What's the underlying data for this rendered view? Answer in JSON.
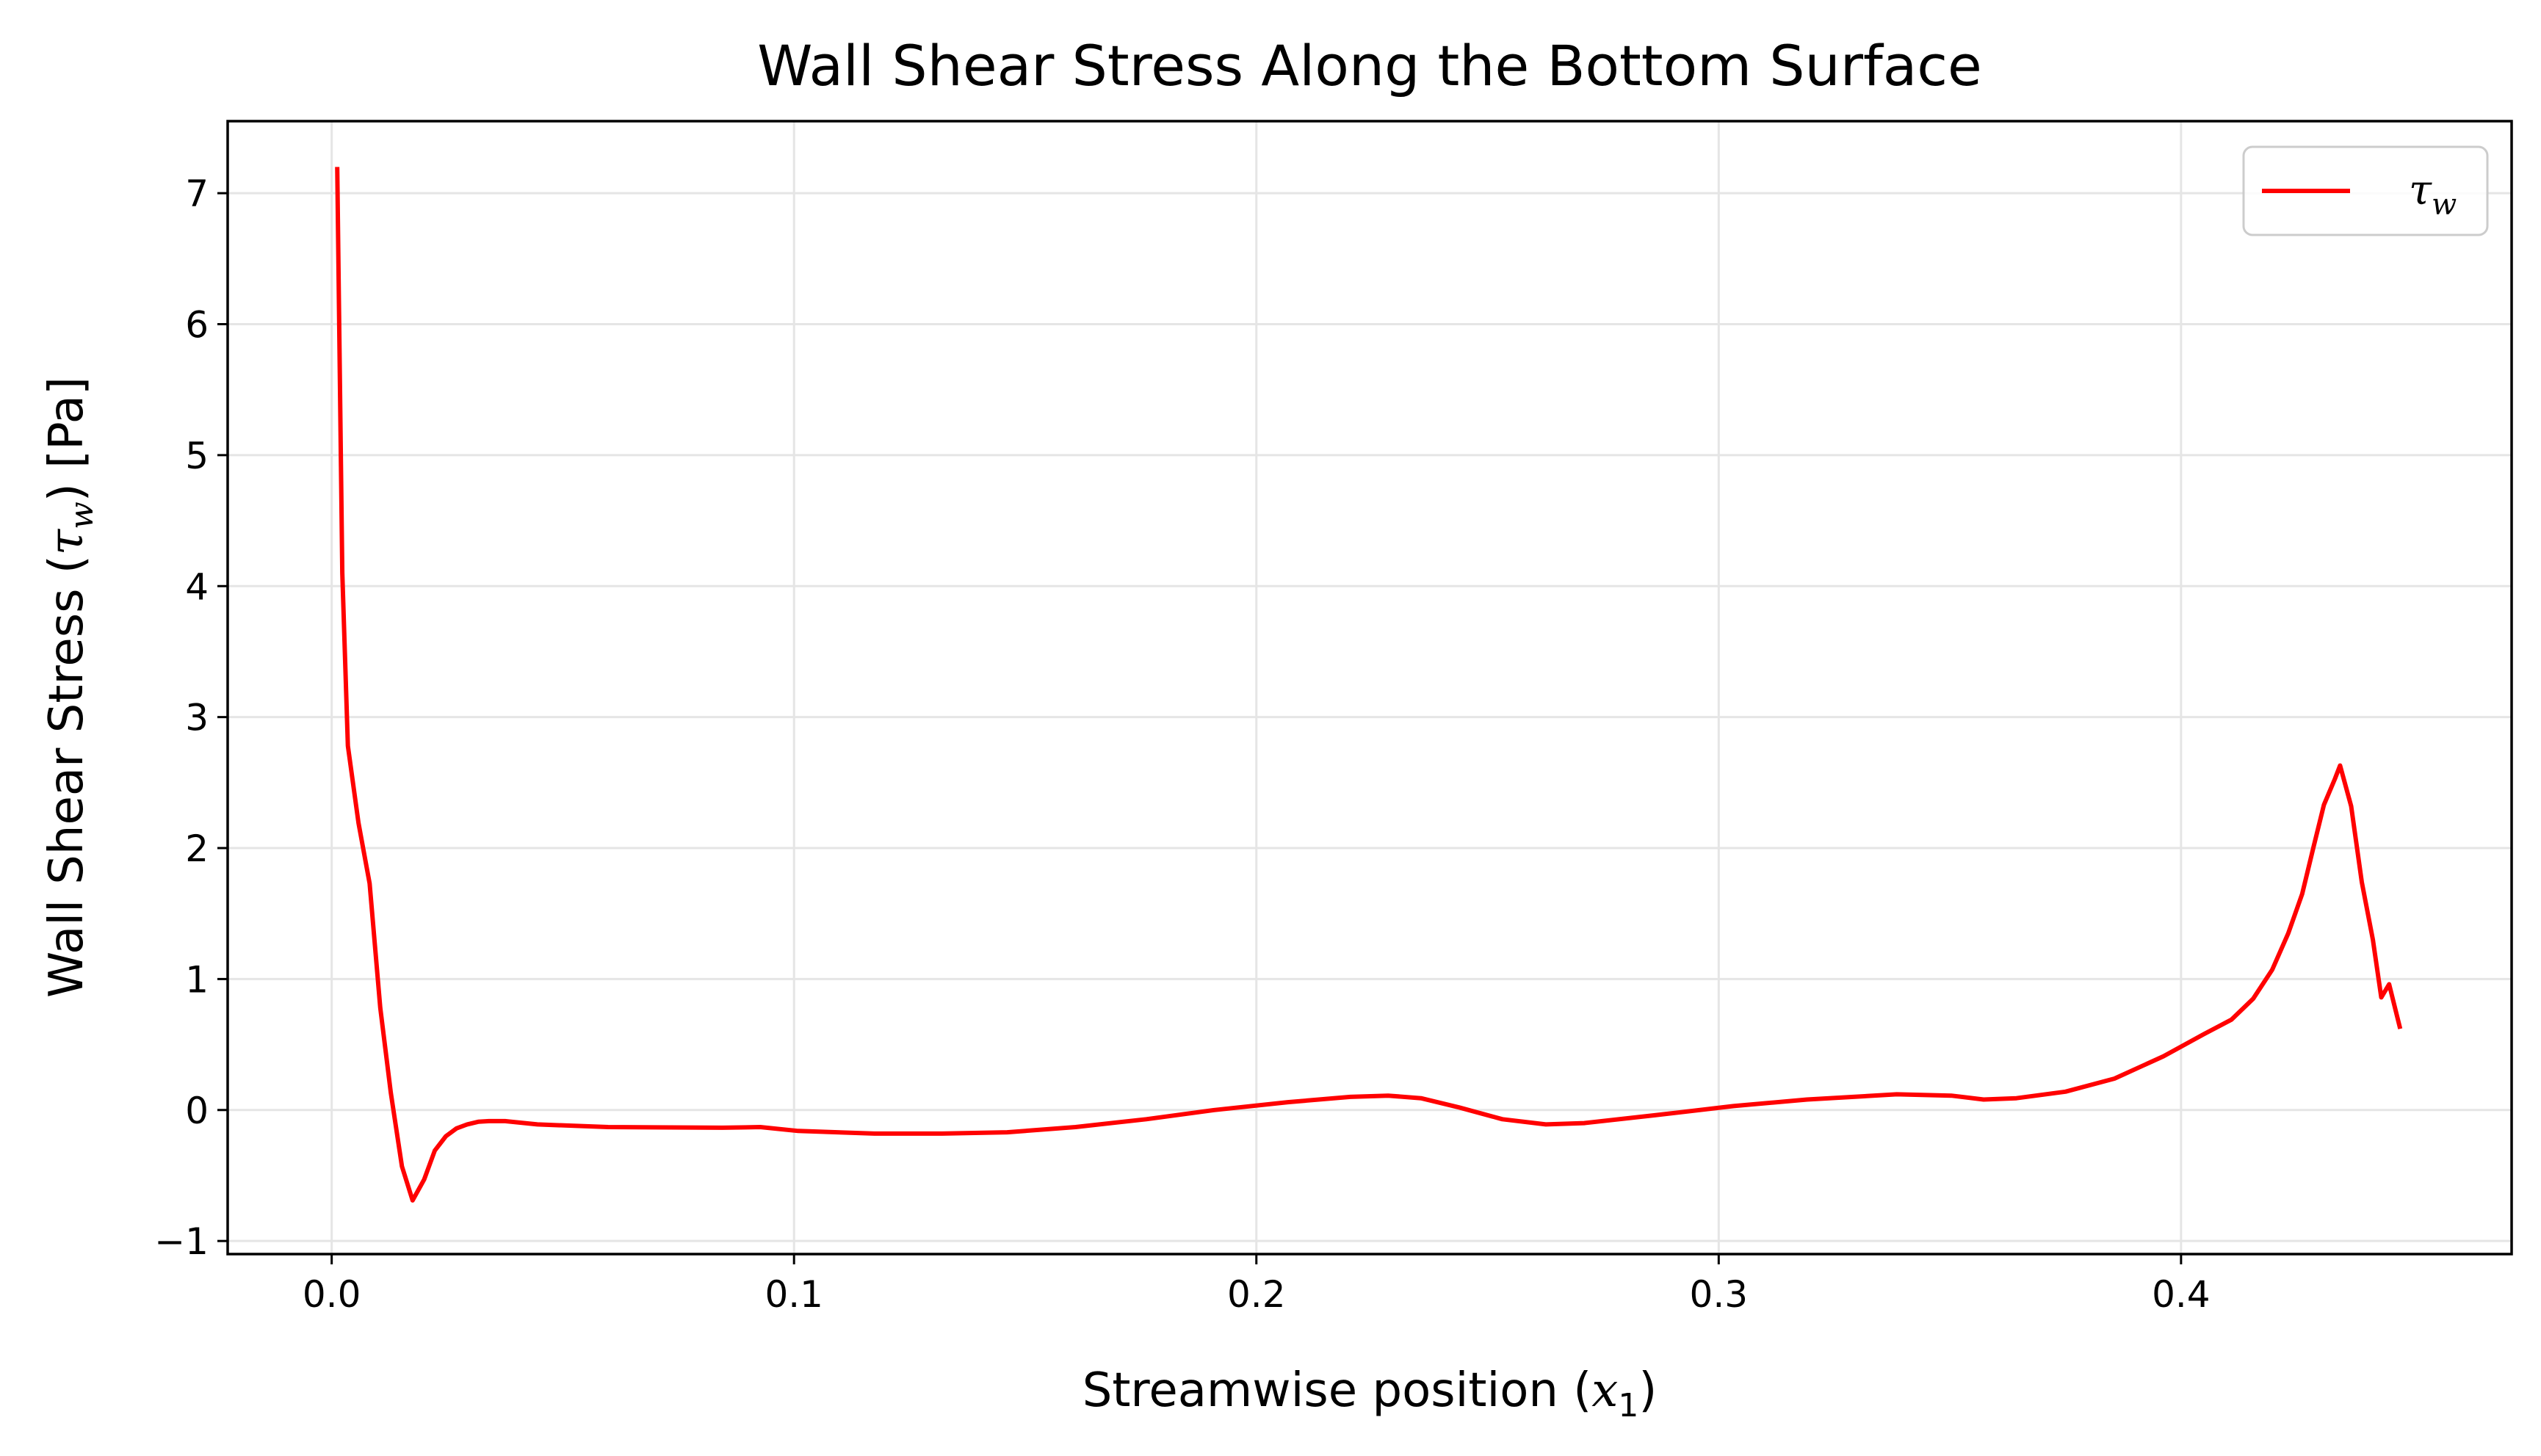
{
  "chart_data": {
    "type": "line",
    "title": "Wall Shear Stress Along the Bottom Surface",
    "xlabel_main": "Streamwise position (",
    "xlabel_symbol": "x",
    "xlabel_sub": "1",
    "xlabel_close": ")",
    "ylabel_main": "Wall Shear Stress (",
    "ylabel_symbol": "τ",
    "ylabel_sub": "w",
    "ylabel_close": ") [Pa]",
    "xlim": [
      -0.0225,
      0.4715
    ],
    "ylim": [
      -1.1,
      7.55
    ],
    "xticks": [
      0.0,
      0.1,
      0.2,
      0.3,
      0.4
    ],
    "xtick_labels": [
      "0.0",
      "0.1",
      "0.2",
      "0.3",
      "0.4"
    ],
    "yticks": [
      -1,
      0,
      1,
      2,
      3,
      4,
      5,
      6,
      7
    ],
    "ytick_labels": [
      "−1",
      "0",
      "1",
      "2",
      "3",
      "4",
      "5",
      "6",
      "7"
    ],
    "grid": true,
    "legend_position": "upper-right",
    "series": [
      {
        "name_symbol": "τ",
        "name_sub": "w",
        "color": "#ff0000",
        "x": [
          0.0012,
          0.0023,
          0.0035,
          0.0058,
          0.0082,
          0.0105,
          0.0128,
          0.0152,
          0.0175,
          0.02,
          0.0223,
          0.0247,
          0.027,
          0.0293,
          0.0317,
          0.034,
          0.0375,
          0.0445,
          0.0598,
          0.0845,
          0.0927,
          0.1009,
          0.1174,
          0.132,
          0.1461,
          0.1609,
          0.1762,
          0.1909,
          0.2068,
          0.2203,
          0.2285,
          0.2356,
          0.2438,
          0.2532,
          0.2626,
          0.2709,
          0.2862,
          0.3032,
          0.3191,
          0.3385,
          0.3503,
          0.3573,
          0.3644,
          0.375,
          0.3856,
          0.3962,
          0.405,
          0.4109,
          0.4156,
          0.4197,
          0.4232,
          0.4262,
          0.4286,
          0.4309,
          0.4333,
          0.4344,
          0.4368,
          0.4391,
          0.4415,
          0.4433,
          0.445,
          0.4474
        ],
        "y": [
          7.2,
          4.1,
          2.78,
          2.19,
          1.73,
          0.78,
          0.13,
          -0.43,
          -0.69,
          -0.53,
          -0.31,
          -0.2,
          -0.14,
          -0.11,
          -0.09,
          -0.085,
          -0.085,
          -0.11,
          -0.13,
          -0.135,
          -0.13,
          -0.16,
          -0.18,
          -0.18,
          -0.17,
          -0.13,
          -0.07,
          0.0,
          0.06,
          0.1,
          0.11,
          0.09,
          0.02,
          -0.07,
          -0.11,
          -0.1,
          -0.04,
          0.03,
          0.08,
          0.12,
          0.11,
          0.08,
          0.09,
          0.14,
          0.24,
          0.41,
          0.58,
          0.69,
          0.85,
          1.07,
          1.35,
          1.65,
          2.0,
          2.33,
          2.53,
          2.63,
          2.32,
          1.74,
          1.3,
          0.86,
          0.96,
          0.62
        ]
      }
    ]
  }
}
